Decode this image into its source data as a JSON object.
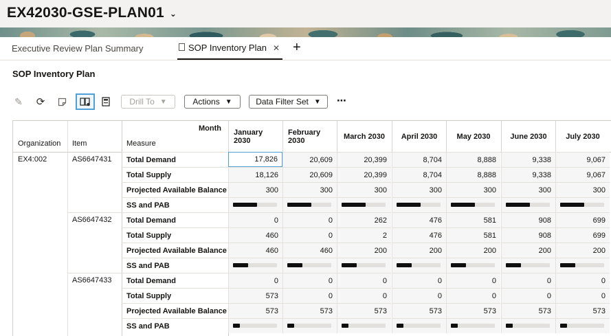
{
  "app": {
    "title": "EX42030-GSE-PLAN01"
  },
  "tabs": [
    {
      "label": "Executive Review Plan Summary",
      "active": false
    },
    {
      "label": "SOP Inventory Plan",
      "active": true
    }
  ],
  "page": {
    "title": "SOP Inventory Plan"
  },
  "toolbar": {
    "drill_to": "Drill To",
    "actions": "Actions",
    "data_filter_set": "Data Filter Set",
    "icons": [
      "pencil-icon",
      "refresh-icon",
      "note-icon",
      "book-icon",
      "calculator-icon",
      "more-icon"
    ]
  },
  "grid": {
    "month_label": "Month",
    "header_left": {
      "organization": "Organization",
      "item": "Item",
      "measure": "Measure"
    },
    "months": [
      "January 2030",
      "February 2030",
      "March 2030",
      "April 2030",
      "May 2030",
      "June 2030",
      "July 2030"
    ],
    "organization": "EX4:002",
    "items": [
      {
        "item": "AS6647431",
        "rows": [
          {
            "measure": "Total Demand",
            "values": [
              "17,826",
              "20,609",
              "20,399",
              "8,704",
              "8,888",
              "9,338",
              "9,067"
            ]
          },
          {
            "measure": "Total Supply",
            "values": [
              "18,126",
              "20,609",
              "20,399",
              "8,704",
              "8,888",
              "9,338",
              "9,067"
            ]
          },
          {
            "measure": "Projected Available Balance",
            "values": [
              "300",
              "300",
              "300",
              "300",
              "300",
              "300",
              "300"
            ]
          },
          {
            "measure": "SS and PAB",
            "bars": [
              0.55,
              0.55,
              0.55,
              0.55,
              0.55,
              0.55,
              0.55
            ]
          }
        ]
      },
      {
        "item": "AS6647432",
        "rows": [
          {
            "measure": "Total Demand",
            "values": [
              "0",
              "0",
              "262",
              "476",
              "581",
              "908",
              "699"
            ]
          },
          {
            "measure": "Total Supply",
            "values": [
              "460",
              "0",
              "2",
              "476",
              "581",
              "908",
              "699"
            ]
          },
          {
            "measure": "Projected Available Balance",
            "values": [
              "460",
              "460",
              "200",
              "200",
              "200",
              "200",
              "200"
            ]
          },
          {
            "measure": "SS and PAB",
            "bars": [
              0.35,
              0.35,
              0.35,
              0.35,
              0.35,
              0.35,
              0.35
            ]
          }
        ]
      },
      {
        "item": "AS6647433",
        "rows": [
          {
            "measure": "Total Demand",
            "values": [
              "0",
              "0",
              "0",
              "0",
              "0",
              "0",
              "0"
            ]
          },
          {
            "measure": "Total Supply",
            "values": [
              "573",
              "0",
              "0",
              "0",
              "0",
              "0",
              "0"
            ]
          },
          {
            "measure": "Projected Available Balance",
            "values": [
              "573",
              "573",
              "573",
              "573",
              "573",
              "573",
              "573"
            ]
          },
          {
            "measure": "SS and PAB",
            "bars": [
              0.15,
              0.15,
              0.15,
              0.15,
              0.15,
              0.15,
              0.15
            ]
          }
        ]
      }
    ]
  }
}
